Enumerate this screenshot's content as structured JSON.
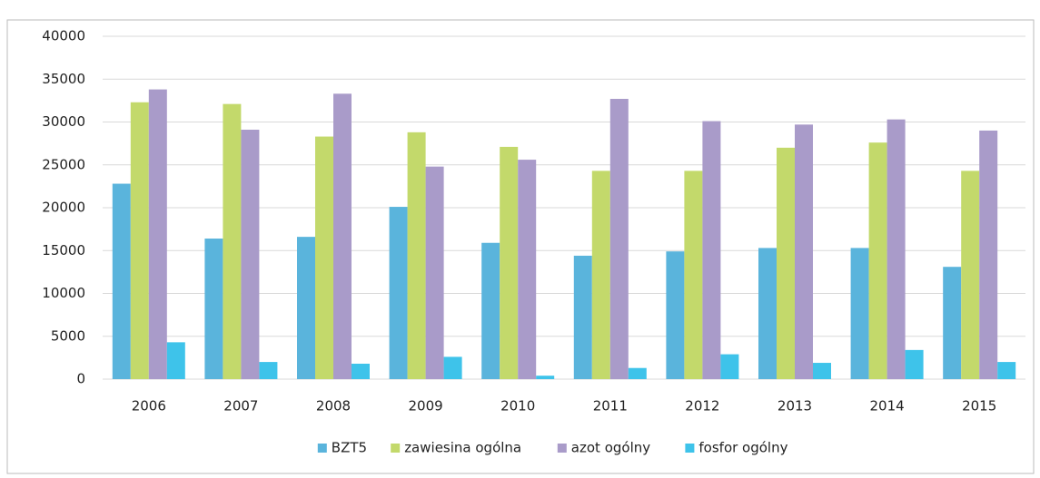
{
  "chart_data": {
    "type": "bar",
    "categories": [
      "2006",
      "2007",
      "2008",
      "2009",
      "2010",
      "2011",
      "2012",
      "2013",
      "2014",
      "2015"
    ],
    "series": [
      {
        "name": "BZT5",
        "color": "#5ab4dc",
        "values": [
          22800,
          16400,
          16600,
          20100,
          15900,
          14400,
          14900,
          15300,
          15300,
          13100
        ]
      },
      {
        "name": "zawiesina ogólna",
        "color": "#c3d96b",
        "values": [
          32300,
          32100,
          28300,
          28800,
          27100,
          24300,
          24300,
          27000,
          27600,
          24300
        ]
      },
      {
        "name": "azot ogólny",
        "color": "#a99bc9",
        "values": [
          33800,
          29100,
          33300,
          24800,
          25600,
          32700,
          30100,
          29700,
          30300,
          29000
        ]
      },
      {
        "name": "fosfor ogólny",
        "color": "#3ec3ea",
        "values": [
          4300,
          2000,
          1800,
          2600,
          400,
          1300,
          2900,
          1900,
          3400,
          2000
        ]
      }
    ],
    "ylim": [
      0,
      40000
    ],
    "yticks": [
      0,
      5000,
      10000,
      15000,
      20000,
      25000,
      30000,
      35000,
      40000
    ],
    "grid": true,
    "legend": "bottom"
  }
}
